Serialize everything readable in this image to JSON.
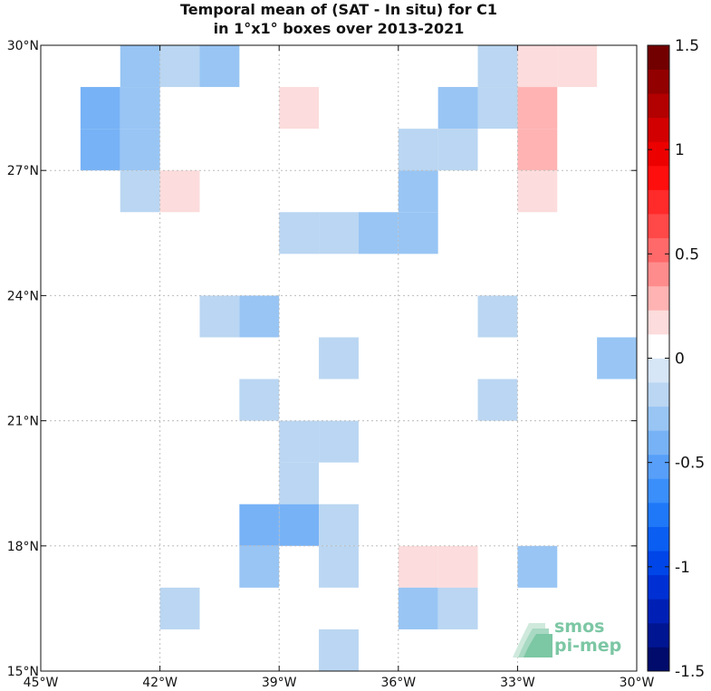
{
  "chart_data": {
    "type": "heatmap",
    "title_line1": "Temporal mean of (SAT - In situ) for C1",
    "title_line2": "in 1°x1° boxes over 2013-2021",
    "x_range_lon": [
      -45,
      -30
    ],
    "y_range_lat": [
      15,
      30
    ],
    "x_ticks": [
      {
        "value": -45,
        "label": "45°W"
      },
      {
        "value": -42,
        "label": "42°W"
      },
      {
        "value": -39,
        "label": "39°W"
      },
      {
        "value": -36,
        "label": "36°W"
      },
      {
        "value": -33,
        "label": "33°W"
      },
      {
        "value": -30,
        "label": "30°W"
      }
    ],
    "y_ticks": [
      {
        "value": 15,
        "label": "15°N"
      },
      {
        "value": 18,
        "label": "18°N"
      },
      {
        "value": 21,
        "label": "21°N"
      },
      {
        "value": 24,
        "label": "24°N"
      },
      {
        "value": 27,
        "label": "27°N"
      },
      {
        "value": 30,
        "label": "30°N"
      }
    ],
    "grid": true,
    "colorbar": {
      "range": [
        -1.5,
        1.5
      ],
      "steps": 26,
      "ticks": [
        {
          "value": 1.5,
          "label": "1.5"
        },
        {
          "value": 1.0,
          "label": "1"
        },
        {
          "value": 0.5,
          "label": "0.5"
        },
        {
          "value": 0.0,
          "label": "0"
        },
        {
          "value": -0.5,
          "label": "-0.5"
        },
        {
          "value": -1.0,
          "label": "-1"
        },
        {
          "value": -1.5,
          "label": "-1.5"
        }
      ],
      "colors": [
        "#000b6b",
        "#001591",
        "#0020b5",
        "#0030d4",
        "#0045e8",
        "#0a5ef2",
        "#1f78f8",
        "#3a8ffb",
        "#579ff9",
        "#77b2f6",
        "#98c5f4",
        "#bad6f2",
        "#d6e6f7",
        "#ffffff",
        "#fcdcdc",
        "#ffb3b3",
        "#ff8c8c",
        "#ff6969",
        "#ff4848",
        "#ff2a2a",
        "#ff0e0e",
        "#ec0000",
        "#d20000",
        "#b30000",
        "#930000",
        "#730000"
      ]
    },
    "cells": [
      {
        "lon": -43,
        "lat": 29,
        "value": -0.25
      },
      {
        "lon": -42,
        "lat": 29,
        "value": -0.15
      },
      {
        "lon": -41,
        "lat": 29,
        "value": -0.25
      },
      {
        "lon": -34,
        "lat": 29,
        "value": -0.15
      },
      {
        "lon": -33,
        "lat": 29,
        "value": 0.15
      },
      {
        "lon": -32,
        "lat": 29,
        "value": 0.15
      },
      {
        "lon": -44,
        "lat": 28,
        "value": -0.35
      },
      {
        "lon": -43,
        "lat": 28,
        "value": -0.25
      },
      {
        "lon": -39,
        "lat": 28,
        "value": 0.15
      },
      {
        "lon": -35,
        "lat": 28,
        "value": -0.25
      },
      {
        "lon": -34,
        "lat": 28,
        "value": -0.15
      },
      {
        "lon": -33,
        "lat": 28,
        "value": 0.3
      },
      {
        "lon": -44,
        "lat": 27,
        "value": -0.35
      },
      {
        "lon": -43,
        "lat": 27,
        "value": -0.25
      },
      {
        "lon": -36,
        "lat": 27,
        "value": -0.15
      },
      {
        "lon": -35,
        "lat": 27,
        "value": -0.15
      },
      {
        "lon": -33,
        "lat": 27,
        "value": 0.3
      },
      {
        "lon": -43,
        "lat": 26,
        "value": -0.15
      },
      {
        "lon": -42,
        "lat": 26,
        "value": 0.15
      },
      {
        "lon": -36,
        "lat": 26,
        "value": -0.25
      },
      {
        "lon": -33,
        "lat": 26,
        "value": 0.15
      },
      {
        "lon": -39,
        "lat": 25,
        "value": -0.15
      },
      {
        "lon": -38,
        "lat": 25,
        "value": -0.15
      },
      {
        "lon": -37,
        "lat": 25,
        "value": -0.25
      },
      {
        "lon": -36,
        "lat": 25,
        "value": -0.25
      },
      {
        "lon": -41,
        "lat": 23,
        "value": -0.15
      },
      {
        "lon": -40,
        "lat": 23,
        "value": -0.25
      },
      {
        "lon": -34,
        "lat": 23,
        "value": -0.15
      },
      {
        "lon": -38,
        "lat": 22,
        "value": -0.15
      },
      {
        "lon": -31,
        "lat": 22,
        "value": -0.25
      },
      {
        "lon": -40,
        "lat": 21,
        "value": -0.15
      },
      {
        "lon": -34,
        "lat": 21,
        "value": -0.15
      },
      {
        "lon": -39,
        "lat": 20,
        "value": -0.15
      },
      {
        "lon": -38,
        "lat": 20,
        "value": -0.15
      },
      {
        "lon": -39,
        "lat": 19,
        "value": -0.15
      },
      {
        "lon": -40,
        "lat": 18,
        "value": -0.35
      },
      {
        "lon": -39,
        "lat": 18,
        "value": -0.35
      },
      {
        "lon": -38,
        "lat": 18,
        "value": -0.15
      },
      {
        "lon": -40,
        "lat": 17,
        "value": -0.25
      },
      {
        "lon": -38,
        "lat": 17,
        "value": -0.15
      },
      {
        "lon": -36,
        "lat": 17,
        "value": 0.15
      },
      {
        "lon": -35,
        "lat": 17,
        "value": 0.15
      },
      {
        "lon": -33,
        "lat": 17,
        "value": -0.25
      },
      {
        "lon": -42,
        "lat": 16,
        "value": -0.15
      },
      {
        "lon": -36,
        "lat": 16,
        "value": -0.25
      },
      {
        "lon": -35,
        "lat": 16,
        "value": -0.15
      },
      {
        "lon": -38,
        "lat": 15,
        "value": -0.15
      }
    ]
  },
  "logo": {
    "line1": "smos",
    "line2": "pi-mep"
  }
}
